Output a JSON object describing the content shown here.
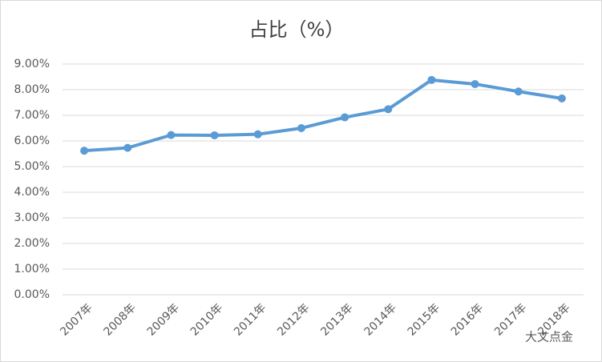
{
  "chart_data": {
    "type": "line",
    "title": "占比（%）",
    "categories": [
      "2007年",
      "2008年",
      "2009年",
      "2010年",
      "2011年",
      "2012年",
      "2013年",
      "2014年",
      "2015年",
      "2016年",
      "2017年",
      "2018年"
    ],
    "series": [
      {
        "name": "占比",
        "color": "#5b9bd5",
        "values": [
          5.62,
          5.73,
          6.23,
          6.22,
          6.26,
          6.5,
          6.92,
          7.24,
          8.38,
          8.22,
          7.93,
          7.66
        ]
      }
    ],
    "ylim": [
      0,
      9
    ],
    "yticks": [
      {
        "value": 0,
        "label": "0.00%"
      },
      {
        "value": 1,
        "label": "1.00%"
      },
      {
        "value": 2,
        "label": "2.00%"
      },
      {
        "value": 3,
        "label": "3.00%"
      },
      {
        "value": 4,
        "label": "4.00%"
      },
      {
        "value": 5,
        "label": "5.00%"
      },
      {
        "value": 6,
        "label": "6.00%"
      },
      {
        "value": 7,
        "label": "7.00%"
      },
      {
        "value": 8,
        "label": "8.00%"
      },
      {
        "value": 9,
        "label": "9.00%"
      }
    ],
    "grid": true,
    "watermark": "大文点金"
  }
}
